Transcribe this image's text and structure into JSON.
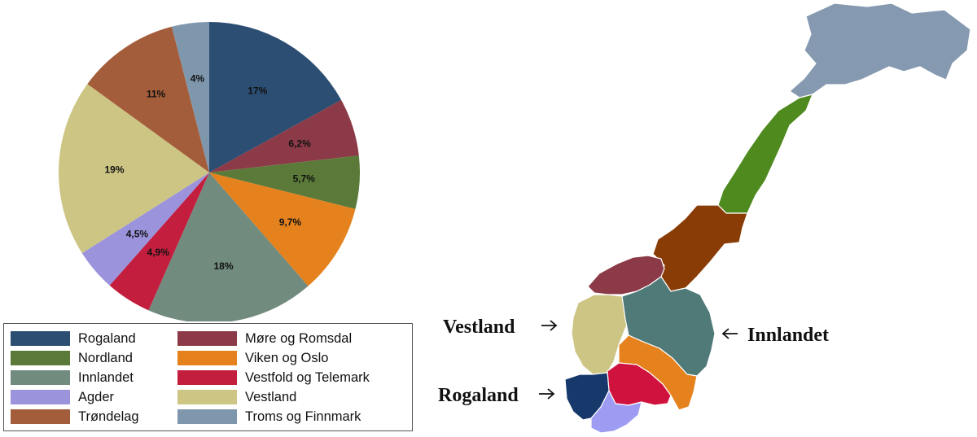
{
  "chart_data": {
    "type": "pie",
    "title": "",
    "start_angle_deg": 0,
    "direction": "clockwise",
    "legend_position": "bottom",
    "slices": [
      {
        "name": "Rogaland",
        "value": 17,
        "label": "17%",
        "color": "#2b4e72"
      },
      {
        "name": "Møre og Romsdal",
        "value": 6.2,
        "label": "6,2%",
        "color": "#8c3a47"
      },
      {
        "name": "Nordland",
        "value": 5.7,
        "label": "5,7%",
        "color": "#5b7a3a"
      },
      {
        "name": "Viken og Oslo",
        "value": 9.7,
        "label": "9,7%",
        "color": "#e5821e"
      },
      {
        "name": "Innlandet",
        "value": 18,
        "label": "18%",
        "color": "#718b7e"
      },
      {
        "name": "Vestfold og Telemark",
        "value": 4.9,
        "label": "4,9%",
        "color": "#c31e3e"
      },
      {
        "name": "Agder",
        "value": 4.5,
        "label": "4,5%",
        "color": "#9b93dc"
      },
      {
        "name": "Vestland",
        "value": 19,
        "label": "19%",
        "color": "#cdc584"
      },
      {
        "name": "Trøndelag",
        "value": 11,
        "label": "11%",
        "color": "#a45d3a"
      },
      {
        "name": "Troms og Finnmark",
        "value": 4,
        "label": "4%",
        "color": "#7f97ad"
      }
    ],
    "legend": {
      "columns": [
        [
          "Rogaland",
          "Nordland",
          "Innlandet",
          "Agder",
          "Trøndelag"
        ],
        [
          "Møre og Romsdal",
          "Viken og Oslo",
          "Vestfold og Telemark",
          "Vestland",
          "Troms og Finnmark"
        ]
      ]
    }
  },
  "map": {
    "labels": {
      "vestland": "Vestland",
      "rogaland": "Rogaland",
      "innlandet": "Innlandet"
    },
    "region_colors": {
      "troms_finnmark": "#8599b0",
      "nordland": "#4e8a1e",
      "trondelag": "#8a3c06",
      "more_romsdal": "#8c3a47",
      "vestland": "#cdc584",
      "innlandet": "#4f7a78",
      "viken_oslo": "#e5821e",
      "vestfold_telemark": "#d0123e",
      "rogaland": "#17386b",
      "agder": "#9d9cf2"
    }
  }
}
